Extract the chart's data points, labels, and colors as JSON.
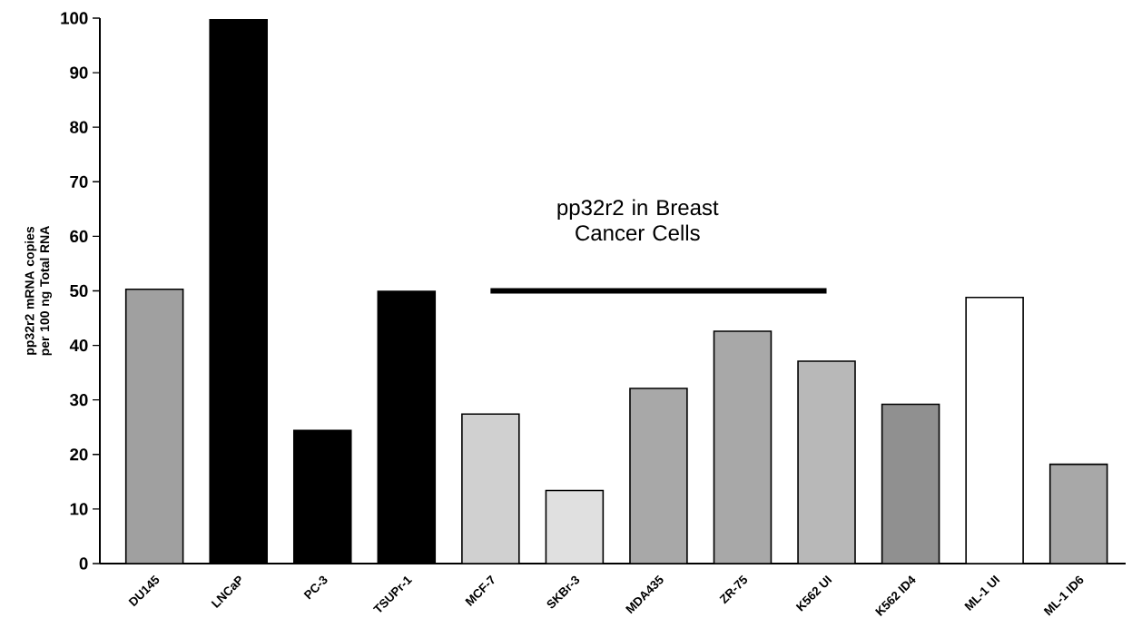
{
  "chart_data": {
    "type": "bar",
    "ylabel": "pp32r2 mRNA copies per 100 ng Total RNA",
    "categories": [
      "DU145",
      "LNCaP",
      "PC-3",
      "TSUPr-1",
      "MCF-7",
      "SKBr-3",
      "MDA435",
      "ZR-75",
      "K562 UI",
      "K562 ID4",
      "ML-1 UI",
      "ML-1 ID6"
    ],
    "series": [
      {
        "values": [
          50.3,
          99.7,
          24.4,
          49.9,
          27.4,
          13.4,
          32.1,
          42.6,
          37.1,
          29.2,
          48.8,
          18.2
        ],
        "colors": [
          "#a0a0a0",
          "#000000",
          "#000000",
          "#000000",
          "#d0d0d0",
          "#e0e0e0",
          "#a8a8a8",
          "#a8a8a8",
          "#b8b8b8",
          "#909090",
          "#ffffff",
          "#a8a8a8"
        ]
      },
      {
        "type": "line",
        "color": "#000000",
        "values": [
          null,
          null,
          null,
          null,
          50,
          50,
          50,
          50,
          50,
          null,
          null,
          null
        ]
      }
    ],
    "ylim": [
      0,
      100
    ],
    "yticks": [
      0,
      10,
      20,
      30,
      40,
      50,
      60,
      70,
      80,
      90,
      100
    ],
    "annotations": [
      "pp32r2 in Breast Cancer Cells"
    ]
  }
}
